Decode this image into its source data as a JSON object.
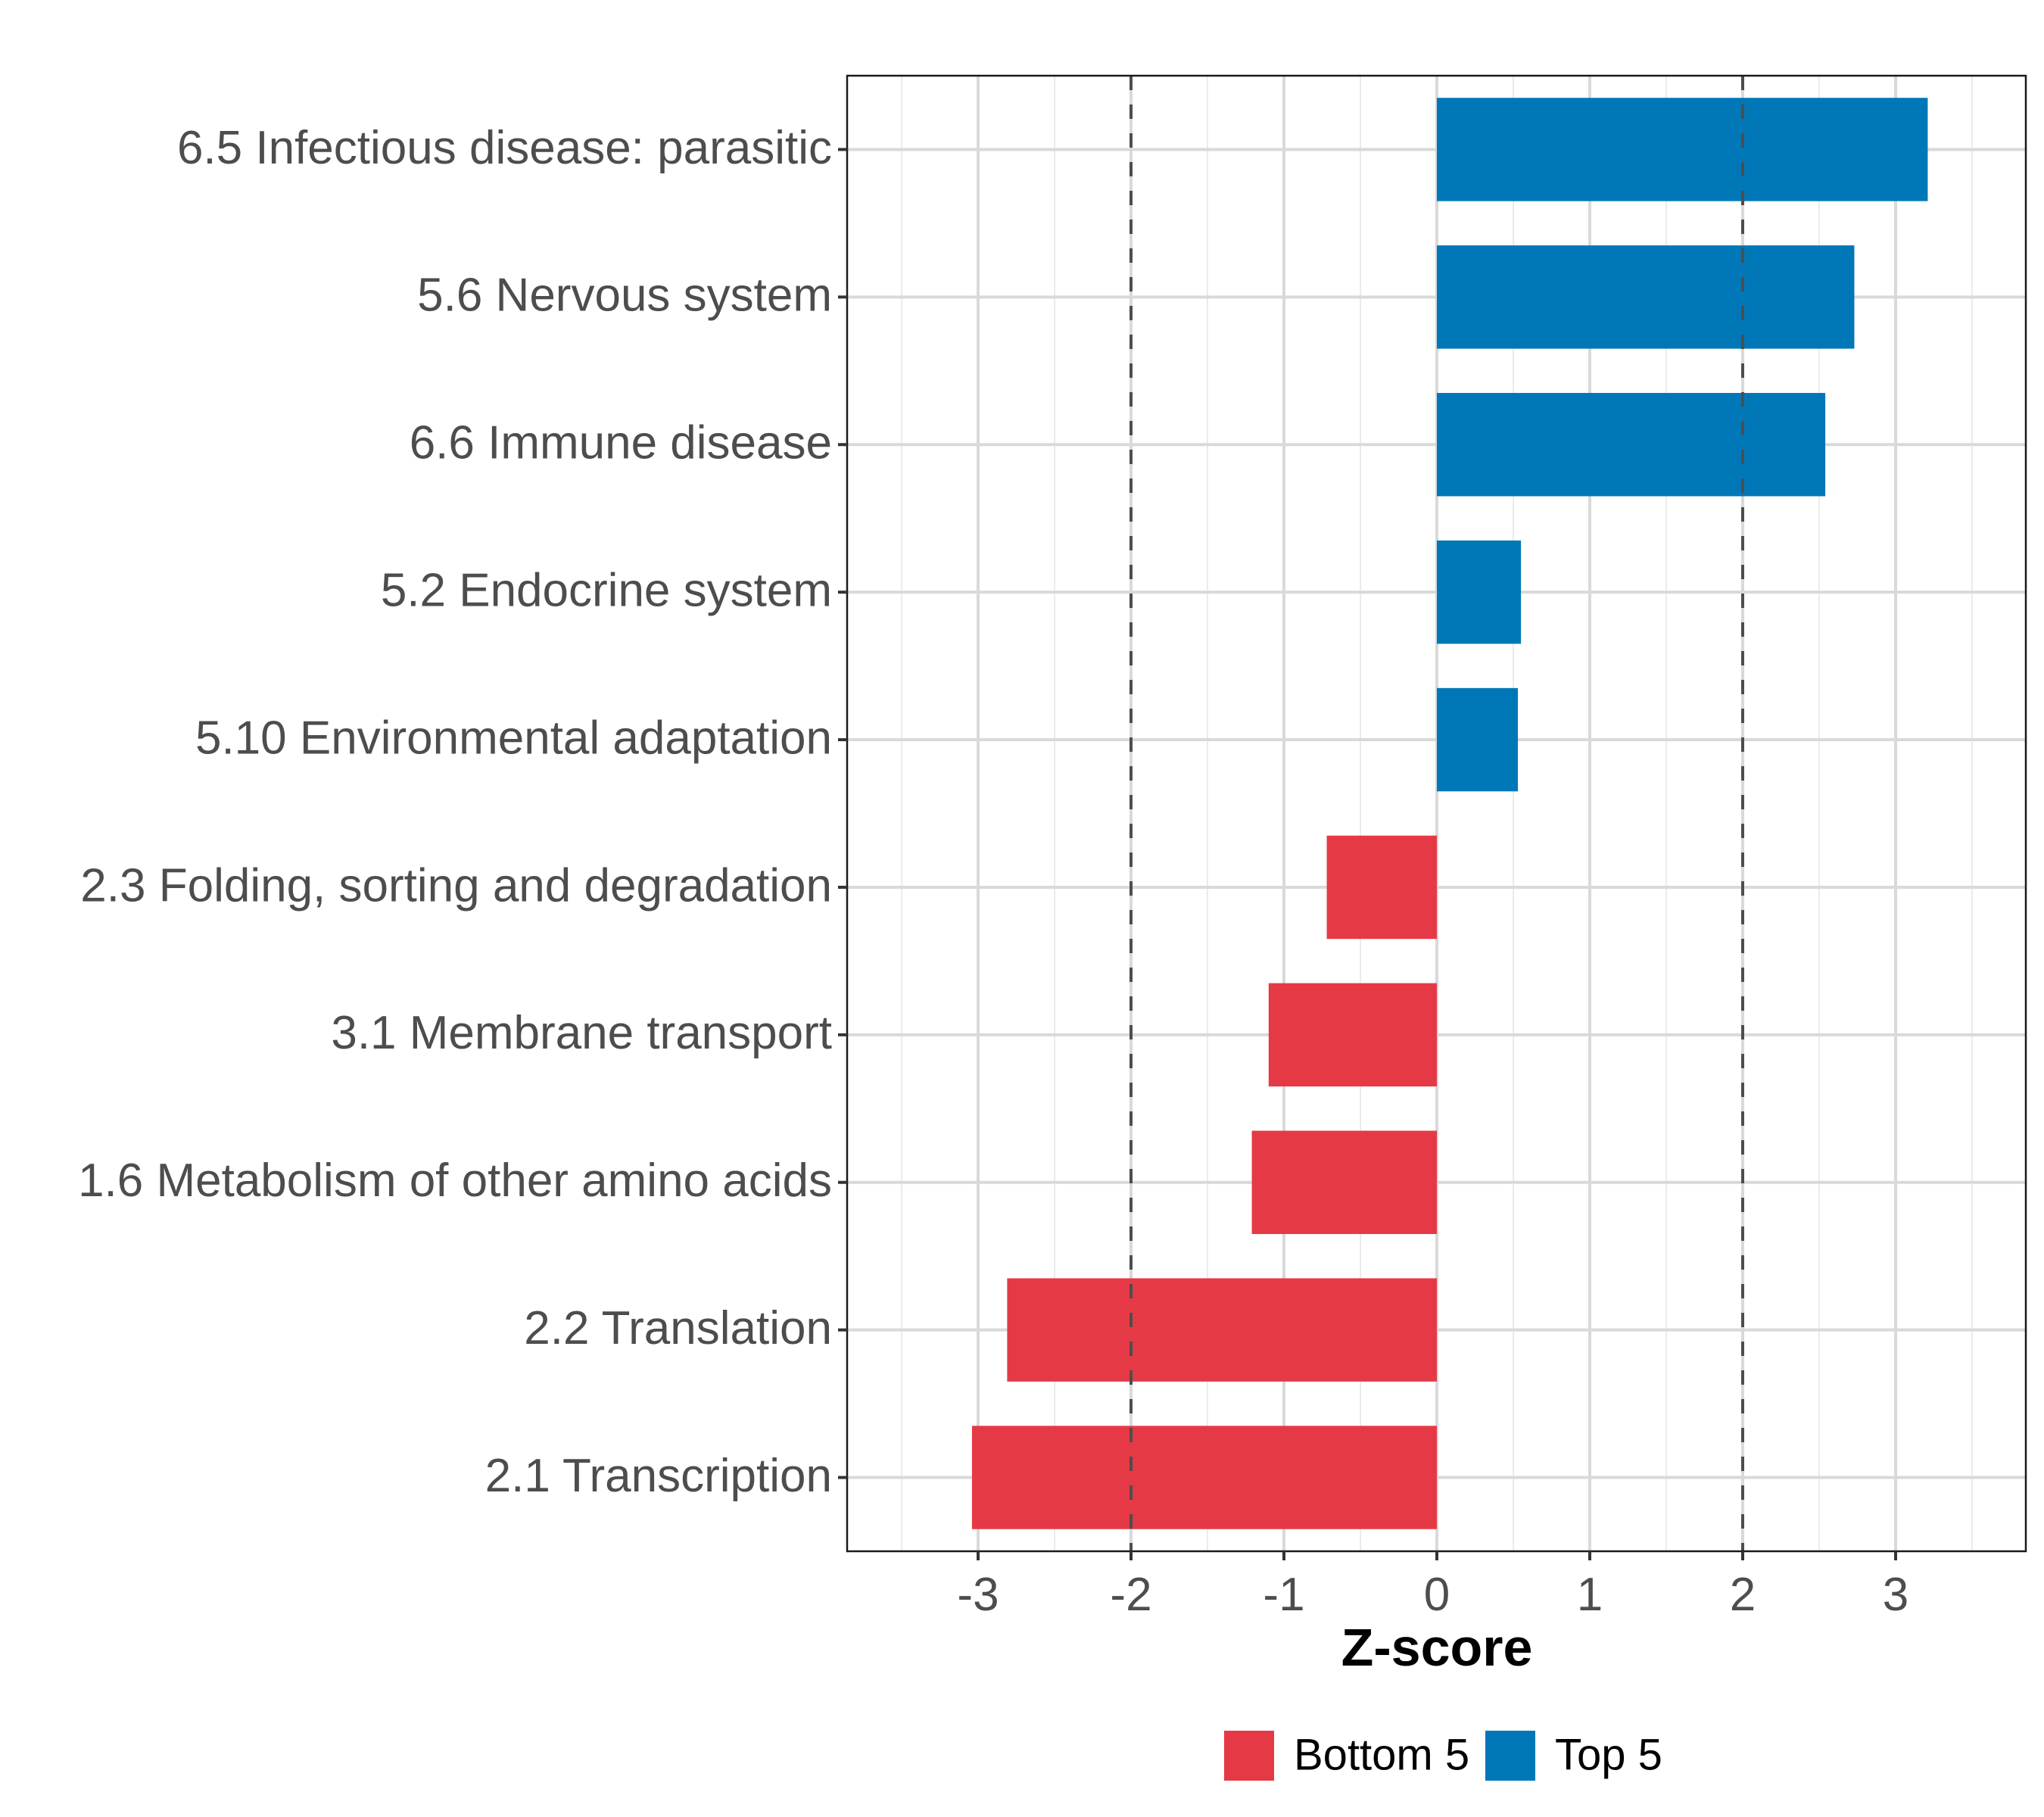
{
  "chart_data": {
    "type": "bar",
    "orientation": "horizontal",
    "title": "",
    "xlabel": "Z-score",
    "ylabel": "",
    "xlim": [
      -3.85,
      3.85
    ],
    "xticks": [
      -3,
      -2,
      -1,
      0,
      1,
      2,
      3
    ],
    "xtick_labels": [
      "-3",
      "-2",
      "-1",
      "0",
      "1",
      "2",
      "3"
    ],
    "reference_lines": [
      -2,
      2
    ],
    "grid": true,
    "legend_position": "bottom",
    "categories": [
      "6.5 Infectious disease: parasitic",
      "5.6 Nervous system",
      "6.6 Immune disease",
      "5.2 Endocrine system",
      "5.10 Environmental adaptation",
      "2.3 Folding, sorting and degradation",
      "3.1 Membrane transport",
      "1.6 Metabolism of other amino acids",
      "2.2 Translation",
      "2.1 Transcription"
    ],
    "values": [
      3.21,
      2.73,
      2.54,
      0.55,
      0.53,
      -0.72,
      -1.1,
      -1.21,
      -2.81,
      -3.04
    ],
    "groups": [
      "Top 5",
      "Top 5",
      "Top 5",
      "Top 5",
      "Top 5",
      "Bottom 5",
      "Bottom 5",
      "Bottom 5",
      "Bottom 5",
      "Bottom 5"
    ],
    "series": [
      {
        "name": "Bottom 5",
        "color": "#E63946"
      },
      {
        "name": "Top 5",
        "color": "#0077B6"
      }
    ]
  }
}
